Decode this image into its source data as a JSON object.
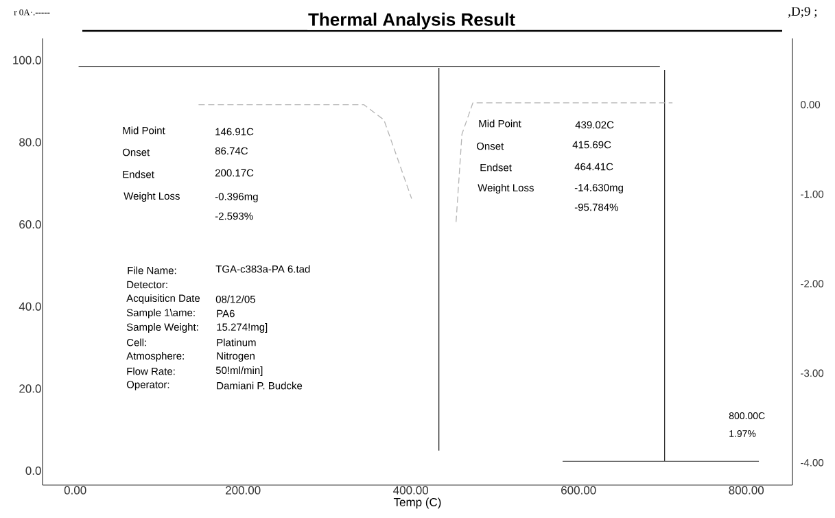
{
  "chart_data": {
    "type": "line",
    "title": "Thermal Analysis Result",
    "xlabel": "Temp (C)",
    "xlim": [
      -39,
      855
    ],
    "ylim": [
      -3.5,
      105.3
    ],
    "y2lim": [
      -4.25,
      0.74
    ],
    "xticks": [
      {
        "value": 0,
        "label": "0.00"
      },
      {
        "value": 200,
        "label": "200.00"
      },
      {
        "value": 400,
        "label": "400.00"
      },
      {
        "value": 600,
        "label": "600.00"
      },
      {
        "value": 800,
        "label": "800.00"
      }
    ],
    "yticks": [
      {
        "value": 0,
        "label": "0.0"
      },
      {
        "value": 20,
        "label": "20.0"
      },
      {
        "value": 40,
        "label": "40.0"
      },
      {
        "value": 60,
        "label": "60.0"
      },
      {
        "value": 80,
        "label": "80.0"
      },
      {
        "value": 100,
        "label": "100.0"
      }
    ],
    "y2ticks": [
      {
        "value": 0,
        "label": "0.00"
      },
      {
        "value": -1,
        "label": "-1.00"
      },
      {
        "value": -2,
        "label": "-2.00"
      },
      {
        "value": -3,
        "label": "-3.00"
      },
      {
        "value": -4,
        "label": "-4.00"
      }
    ],
    "series": [
      {
        "color": "#222222",
        "line_style": "solid",
        "x": [
          4,
          697
        ],
        "values": [
          98.5,
          98.5
        ]
      },
      {
        "color": "#222222",
        "line_style": "solid",
        "x": [
          433.5,
          433.5
        ],
        "values": [
          98.1,
          4.9
        ]
      },
      {
        "color": "#333333",
        "line_style": "solid",
        "x": [
          702.6,
          702.6
        ],
        "values": [
          97.6,
          2.3
        ]
      },
      {
        "color": "#555555",
        "line_style": "solid",
        "x": [
          581,
          815
        ],
        "values": [
          2.3,
          2.3
        ]
      },
      {
        "color": "#b4b4b4",
        "line_style": "dashed",
        "axis": "y2",
        "x": [
          147,
          344,
          368,
          401,
          430,
          454,
          461,
          474,
          532,
          712
        ],
        "values": [
          0,
          0,
          -0.17,
          -1.05,
          null,
          -1.31,
          -0.33,
          0.02,
          0.02,
          0.02
        ]
      }
    ],
    "annotations": [
      "r 0A·.-----",
      ",D;9 ;",
      "Mid Point",
      "146.91C",
      "Onset",
      "86.74C",
      "Endset",
      "200.17C",
      "Weight Loss",
      "-0.396mg",
      "-2.593%",
      "Mid Point",
      "439.02C",
      "Onset",
      "415.69C",
      "Endset",
      "464.41C",
      "Weight Loss",
      "-14.630mg",
      "-95.784%",
      "File Name:",
      "TGA-c383a-PA 6.tad",
      "Detector:",
      "Acquisiticn Date",
      "08/12/05",
      "Sample 1\\ame:",
      "PA6",
      "Sample Weight:",
      "15.274!mg]",
      "Cell:",
      "Platinum",
      "Atmosphere:",
      "Nitrogen",
      "Flow Rate:",
      "50!ml/min]",
      "Operator:",
      "Damiani P. Budcke",
      "800.00C",
      "1.97%"
    ]
  }
}
